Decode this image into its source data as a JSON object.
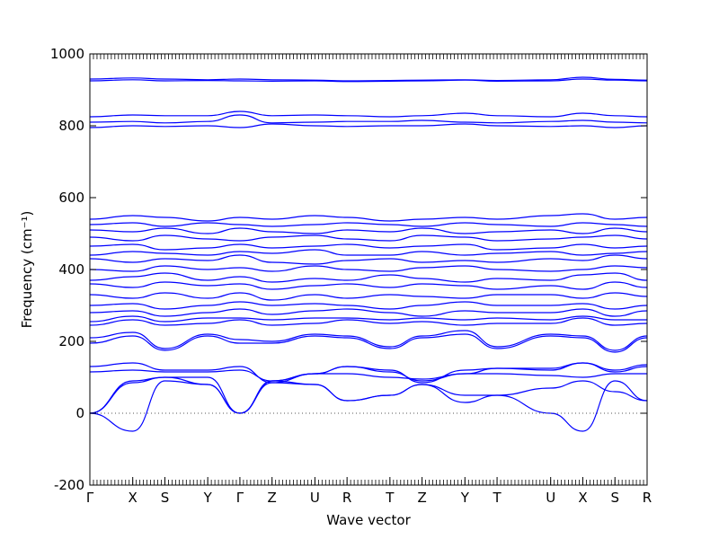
{
  "chart_data": {
    "type": "line",
    "xlabel": "Wave vector",
    "ylabel": "Frequency (cm⁻¹)",
    "ylim": [
      -200,
      1000
    ],
    "yticks": [
      -200,
      0,
      200,
      400,
      600,
      800,
      1000
    ],
    "zero_line": true,
    "grid": false,
    "line_color": "#0000ff",
    "x_positions": [
      0,
      12,
      21,
      33,
      42,
      51,
      63,
      72,
      84,
      93,
      105,
      114,
      129,
      138,
      147,
      156
    ],
    "xticks": [
      {
        "label": "Γ",
        "x": 0
      },
      {
        "label": "X",
        "x": 12
      },
      {
        "label": "S",
        "x": 21
      },
      {
        "label": "Y",
        "x": 33
      },
      {
        "label": "Γ",
        "x": 42
      },
      {
        "label": "Z",
        "x": 51
      },
      {
        "label": "U",
        "x": 63
      },
      {
        "label": "R",
        "x": 72
      },
      {
        "label": "T",
        "x": 84
      },
      {
        "label": "Z",
        "x": 93
      },
      {
        "label": "Y",
        "x": 105
      },
      {
        "label": "T",
        "x": 114
      },
      {
        "label": "U",
        "x": 129
      },
      {
        "label": "X",
        "x": 138
      },
      {
        "label": "S",
        "x": 147
      },
      {
        "label": "R",
        "x": 156
      }
    ],
    "series": [
      {
        "values": [
          0,
          85,
          100,
          80,
          0,
          85,
          80,
          35,
          50,
          80,
          50,
          50,
          70,
          90,
          60,
          35
        ]
      },
      {
        "values": [
          0,
          -50,
          90,
          80,
          0,
          90,
          80,
          35,
          50,
          80,
          30,
          50,
          0,
          -50,
          90,
          35
        ]
      },
      {
        "values": [
          0,
          90,
          100,
          100,
          0,
          90,
          110,
          110,
          100,
          95,
          110,
          110,
          105,
          100,
          110,
          110
        ]
      },
      {
        "values": [
          115,
          120,
          115,
          115,
          120,
          90,
          110,
          130,
          115,
          90,
          110,
          125,
          120,
          140,
          115,
          130
        ]
      },
      {
        "values": [
          130,
          140,
          120,
          120,
          130,
          85,
          110,
          130,
          120,
          85,
          120,
          125,
          125,
          140,
          120,
          135
        ]
      },
      {
        "values": [
          195,
          215,
          175,
          215,
          195,
          195,
          215,
          210,
          180,
          210,
          220,
          180,
          215,
          210,
          170,
          210
        ]
      },
      {
        "values": [
          210,
          225,
          180,
          220,
          205,
          200,
          220,
          215,
          185,
          215,
          230,
          185,
          220,
          215,
          175,
          215
        ]
      },
      {
        "values": [
          245,
          260,
          245,
          250,
          260,
          245,
          250,
          260,
          250,
          255,
          245,
          250,
          250,
          265,
          245,
          250
        ]
      },
      {
        "values": [
          255,
          270,
          255,
          265,
          265,
          260,
          265,
          265,
          260,
          265,
          260,
          265,
          260,
          270,
          260,
          260
        ]
      },
      {
        "values": [
          280,
          285,
          270,
          280,
          290,
          275,
          285,
          290,
          280,
          270,
          285,
          280,
          280,
          290,
          270,
          285
        ]
      },
      {
        "values": [
          300,
          305,
          290,
          300,
          310,
          300,
          305,
          300,
          290,
          300,
          310,
          300,
          300,
          305,
          290,
          300
        ]
      },
      {
        "values": [
          330,
          320,
          335,
          320,
          335,
          315,
          330,
          320,
          330,
          325,
          320,
          330,
          330,
          320,
          335,
          325
        ]
      },
      {
        "values": [
          360,
          350,
          365,
          355,
          360,
          345,
          355,
          360,
          350,
          360,
          355,
          345,
          355,
          345,
          365,
          350
        ]
      },
      {
        "values": [
          370,
          380,
          390,
          370,
          380,
          365,
          375,
          370,
          385,
          375,
          365,
          375,
          370,
          385,
          390,
          370
        ]
      },
      {
        "values": [
          400,
          395,
          410,
          400,
          405,
          395,
          410,
          400,
          395,
          405,
          410,
          400,
          395,
          400,
          410,
          405
        ]
      },
      {
        "values": [
          430,
          420,
          430,
          425,
          440,
          420,
          415,
          425,
          430,
          420,
          425,
          420,
          430,
          425,
          440,
          430
        ]
      },
      {
        "values": [
          440,
          450,
          445,
          440,
          450,
          445,
          455,
          440,
          440,
          450,
          440,
          445,
          450,
          440,
          445,
          450
        ]
      },
      {
        "values": [
          465,
          470,
          455,
          460,
          470,
          460,
          465,
          470,
          460,
          465,
          470,
          455,
          460,
          470,
          460,
          465
        ]
      },
      {
        "values": [
          490,
          480,
          495,
          485,
          480,
          490,
          495,
          485,
          480,
          495,
          490,
          480,
          485,
          490,
          495,
          485
        ]
      },
      {
        "values": [
          510,
          505,
          515,
          500,
          515,
          505,
          500,
          510,
          505,
          515,
          500,
          505,
          510,
          500,
          515,
          505
        ]
      },
      {
        "values": [
          525,
          530,
          520,
          530,
          525,
          520,
          525,
          530,
          525,
          520,
          530,
          525,
          520,
          530,
          525,
          520
        ]
      },
      {
        "values": [
          540,
          550,
          545,
          535,
          545,
          540,
          550,
          545,
          535,
          540,
          545,
          540,
          550,
          555,
          540,
          545
        ]
      },
      {
        "values": [
          795,
          800,
          798,
          800,
          795,
          805,
          800,
          798,
          800,
          800,
          805,
          800,
          798,
          800,
          795,
          800
        ]
      },
      {
        "values": [
          810,
          812,
          808,
          812,
          830,
          808,
          810,
          812,
          812,
          815,
          810,
          808,
          812,
          815,
          810,
          808
        ]
      },
      {
        "values": [
          825,
          830,
          828,
          828,
          840,
          828,
          830,
          828,
          825,
          828,
          835,
          828,
          825,
          835,
          828,
          825
        ]
      },
      {
        "values": [
          925,
          928,
          925,
          926,
          925,
          924,
          925,
          923,
          924,
          925,
          927,
          924,
          925,
          930,
          927,
          925
        ]
      },
      {
        "values": [
          930,
          933,
          930,
          928,
          930,
          928,
          927,
          925,
          926,
          927,
          928,
          926,
          928,
          935,
          929,
          927
        ]
      }
    ]
  }
}
